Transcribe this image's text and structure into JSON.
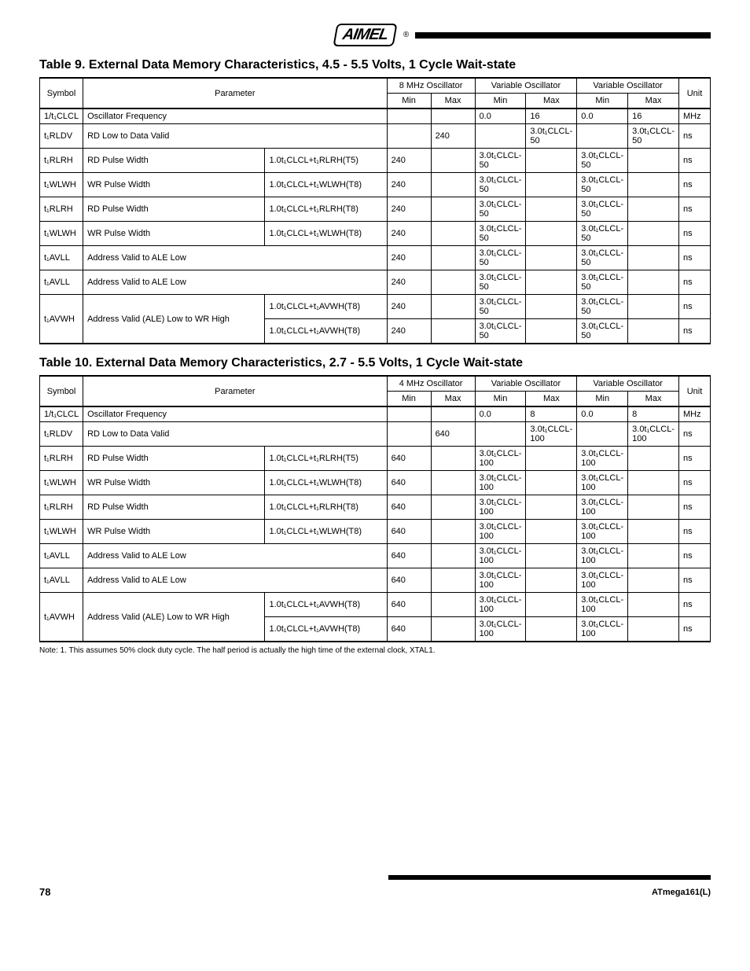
{
  "header": {
    "logo_text": "AIMEL",
    "registered": "®"
  },
  "table9": {
    "title": "Table 9. External Data Memory Characteristics, 4.5 - 5.5 Volts, 1 Cycle Wait-state",
    "cols": {
      "symbol": "Symbol",
      "parameter": "Parameter",
      "hz8": "8 MHz Oscillator",
      "speed_a": "Variable Oscillator",
      "speed_b": "Variable Oscillator",
      "unit": "Unit",
      "min": "Min",
      "max": "Max"
    },
    "rows": [
      {
        "n": "0",
        "sym": "1/t₁CLCL",
        "param": "Oscillator Frequency",
        "cond": "",
        "mm": [
          "",
          "",
          "0.0",
          "16",
          "0.0",
          "16"
        ],
        "u": "MHz"
      },
      {
        "n": "10",
        "sym": "t₁RLDV",
        "param": "RD Low to Data Valid",
        "cond": "",
        "mm": [
          "",
          "240",
          "",
          "3.0t₁CLCL-50",
          "",
          "3.0t₁CLCL-50"
        ],
        "u": "ns"
      },
      {
        "n": "12",
        "sym": "t₁RLRH",
        "param": "RD Pulse Width",
        "cond": "1.0t₁CLCL+t₁RLRH(T5)",
        "mm": [
          "240",
          "",
          "3.0t₁CLCL-50",
          "",
          "3.0t₁CLCL-50",
          ""
        ],
        "u": "ns"
      },
      {
        "n": "13",
        "sym": "t₁WLWH",
        "param": "WR Pulse Width",
        "cond": "1.0t₁CLCL+t₁WLWH(T8)",
        "mm": [
          "240",
          "",
          "3.0t₁CLCL-50",
          "",
          "3.0t₁CLCL-50",
          ""
        ],
        "u": "ns"
      },
      {
        "n": "14",
        "sym": "t₁RLRH",
        "param": "RD Pulse Width",
        "cond": "1.0t₁CLCL+t₁RLRH(T8)",
        "mm": [
          "240",
          "",
          "3.0t₁CLCL-50",
          "",
          "3.0t₁CLCL-50",
          ""
        ],
        "u": "ns"
      },
      {
        "n": "15",
        "sym": "t₁WLWH",
        "param": "WR Pulse Width",
        "cond": "1.0t₁CLCL+t₁WLWH(T8)",
        "mm": [
          "240",
          "",
          "3.0t₁CLCL-50",
          "",
          "3.0t₁CLCL-50",
          ""
        ],
        "u": "ns"
      },
      {
        "n": "16",
        "sym": "t₁AVLL",
        "param": "Address Valid to ALE Low",
        "cond": "",
        "mm": [
          "240",
          "",
          "3.0t₁CLCL-50",
          "",
          "3.0t₁CLCL-50",
          ""
        ],
        "u": "ns"
      },
      {
        "n": "17",
        "sym": "t₁AVLL",
        "param": "Address Valid to ALE Low",
        "cond": "",
        "mm": [
          "240",
          "",
          "3.0t₁CLCL-50",
          "",
          "3.0t₁CLCL-50",
          ""
        ],
        "u": "ns"
      },
      {
        "n": "18a",
        "sym": "t₁AVWH",
        "param": "Address Valid (ALE) Low to WR High",
        "cond": "1.0t₁CLCL+t₁AVWH(T8)",
        "mm": [
          "240",
          "",
          "3.0t₁CLCL-50",
          "",
          "3.0t₁CLCL-50",
          ""
        ],
        "u": "ns"
      },
      {
        "n": "18b",
        "sym": "",
        "param": "",
        "cond": "1.0t₁CLCL+t₁AVWH(T8)",
        "mm": [
          "240",
          "",
          "3.0t₁CLCL-50",
          "",
          "3.0t₁CLCL-50",
          ""
        ],
        "u": "ns"
      }
    ]
  },
  "table10": {
    "title": "Table 10. External Data Memory Characteristics, 2.7 - 5.5 Volts, 1 Cycle Wait-state",
    "note": "Note: 1. This assumes 50% clock duty cycle. The half period is actually the high time of the external clock, XTAL1.",
    "cols": {
      "symbol": "Symbol",
      "parameter": "Parameter",
      "hz4": "4 MHz Oscillator",
      "speed_a": "Variable Oscillator",
      "speed_b": "Variable Oscillator",
      "unit": "Unit",
      "min": "Min",
      "max": "Max"
    },
    "rows": [
      {
        "n": "0",
        "sym": "1/t₁CLCL",
        "param": "Oscillator Frequency",
        "cond": "",
        "mm": [
          "",
          "",
          "0.0",
          "8",
          "0.0",
          "8"
        ],
        "u": "MHz"
      },
      {
        "n": "10",
        "sym": "t₁RLDV",
        "param": "RD Low to Data Valid",
        "cond": "",
        "mm": [
          "",
          "640",
          "",
          "3.0t₁CLCL-100",
          "",
          "3.0t₁CLCL-100"
        ],
        "u": "ns"
      },
      {
        "n": "12",
        "sym": "t₁RLRH",
        "param": "RD Pulse Width",
        "cond": "1.0t₁CLCL+t₁RLRH(T5)",
        "mm": [
          "640",
          "",
          "3.0t₁CLCL-100",
          "",
          "3.0t₁CLCL-100",
          ""
        ],
        "u": "ns"
      },
      {
        "n": "13",
        "sym": "t₁WLWH",
        "param": "WR Pulse Width",
        "cond": "1.0t₁CLCL+t₁WLWH(T8)",
        "mm": [
          "640",
          "",
          "3.0t₁CLCL-100",
          "",
          "3.0t₁CLCL-100",
          ""
        ],
        "u": "ns"
      },
      {
        "n": "14",
        "sym": "t₁RLRH",
        "param": "RD Pulse Width",
        "cond": "1.0t₁CLCL+t₁RLRH(T8)",
        "mm": [
          "640",
          "",
          "3.0t₁CLCL-100",
          "",
          "3.0t₁CLCL-100",
          ""
        ],
        "u": "ns"
      },
      {
        "n": "15",
        "sym": "t₁WLWH",
        "param": "WR Pulse Width",
        "cond": "1.0t₁CLCL+t₁WLWH(T8)",
        "mm": [
          "640",
          "",
          "3.0t₁CLCL-100",
          "",
          "3.0t₁CLCL-100",
          ""
        ],
        "u": "ns"
      },
      {
        "n": "16",
        "sym": "t₁AVLL",
        "param": "Address Valid to ALE Low",
        "cond": "",
        "mm": [
          "640",
          "",
          "3.0t₁CLCL-100",
          "",
          "3.0t₁CLCL-100",
          ""
        ],
        "u": "ns"
      },
      {
        "n": "17",
        "sym": "t₁AVLL",
        "param": "Address Valid to ALE Low",
        "cond": "",
        "mm": [
          "640",
          "",
          "3.0t₁CLCL-100",
          "",
          "3.0t₁CLCL-100",
          ""
        ],
        "u": "ns"
      },
      {
        "n": "18a",
        "sym": "t₁AVWH",
        "param": "Address Valid (ALE) Low to WR High",
        "cond": "1.0t₁CLCL+t₁AVWH(T8)",
        "mm": [
          "640",
          "",
          "3.0t₁CLCL-100",
          "",
          "3.0t₁CLCL-100",
          ""
        ],
        "u": "ns"
      },
      {
        "n": "18b",
        "sym": "",
        "param": "",
        "cond": "1.0t₁CLCL+t₁AVWH(T8)",
        "mm": [
          "640",
          "",
          "3.0t₁CLCL-100",
          "",
          "3.0t₁CLCL-100",
          ""
        ],
        "u": "ns"
      }
    ]
  },
  "footer": {
    "page": "78",
    "doc": "ATmega161(L)"
  }
}
